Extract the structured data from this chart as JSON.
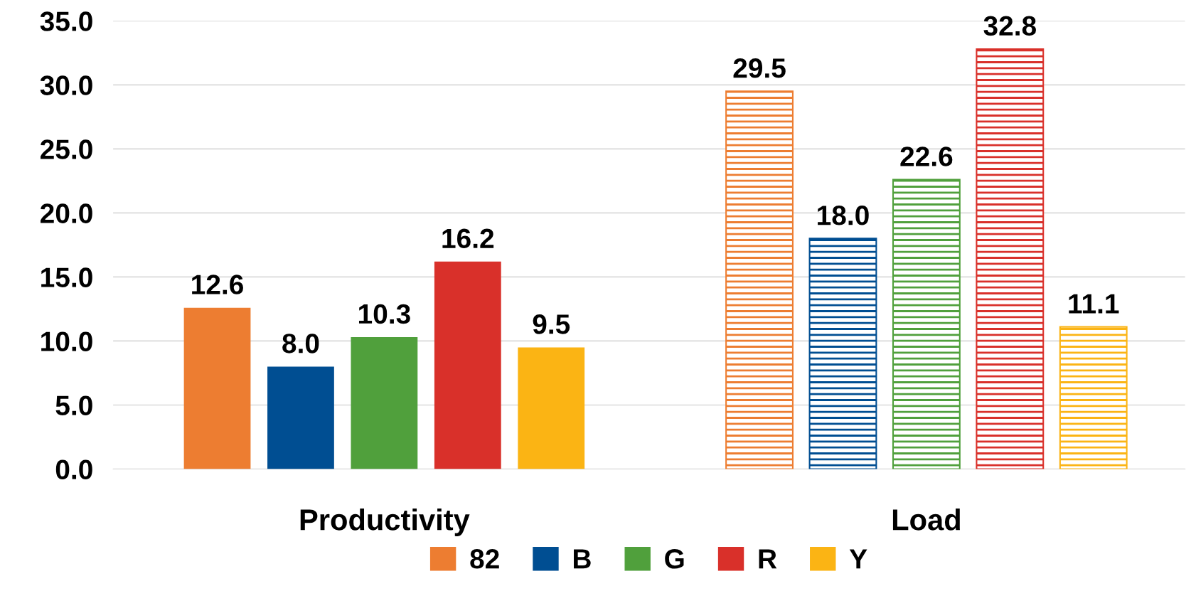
{
  "chart_data": {
    "type": "bar",
    "categories": [
      "Productivity",
      "Load"
    ],
    "series": [
      {
        "name": "82",
        "color": "#ed7d31",
        "values": [
          12.6,
          29.5
        ],
        "value_labels": [
          "12.6",
          "29.5"
        ]
      },
      {
        "name": "B",
        "color": "#004e92",
        "values": [
          8.0,
          18.0
        ],
        "value_labels": [
          "8.0",
          "18.0"
        ]
      },
      {
        "name": "G",
        "color": "#50a03c",
        "values": [
          10.3,
          22.6
        ],
        "value_labels": [
          "10.3",
          "22.6"
        ]
      },
      {
        "name": "R",
        "color": "#d9302a",
        "values": [
          16.2,
          32.8
        ],
        "value_labels": [
          "16.2",
          "32.8"
        ]
      },
      {
        "name": "Y",
        "color": "#fbb414",
        "values": [
          9.5,
          11.1
        ],
        "value_labels": [
          "9.5",
          "11.1"
        ]
      }
    ],
    "ylim": [
      0,
      35
    ],
    "yticks": [
      {
        "value": 0,
        "label": "0.0"
      },
      {
        "value": 5,
        "label": "5.0"
      },
      {
        "value": 10,
        "label": "10.0"
      },
      {
        "value": 15,
        "label": "15.0"
      },
      {
        "value": 20,
        "label": "20.0"
      },
      {
        "value": 25,
        "label": "25.0"
      },
      {
        "value": 30,
        "label": "30.0"
      },
      {
        "value": 35,
        "label": "35.0"
      }
    ],
    "grid": "y",
    "legend": "bottom"
  }
}
